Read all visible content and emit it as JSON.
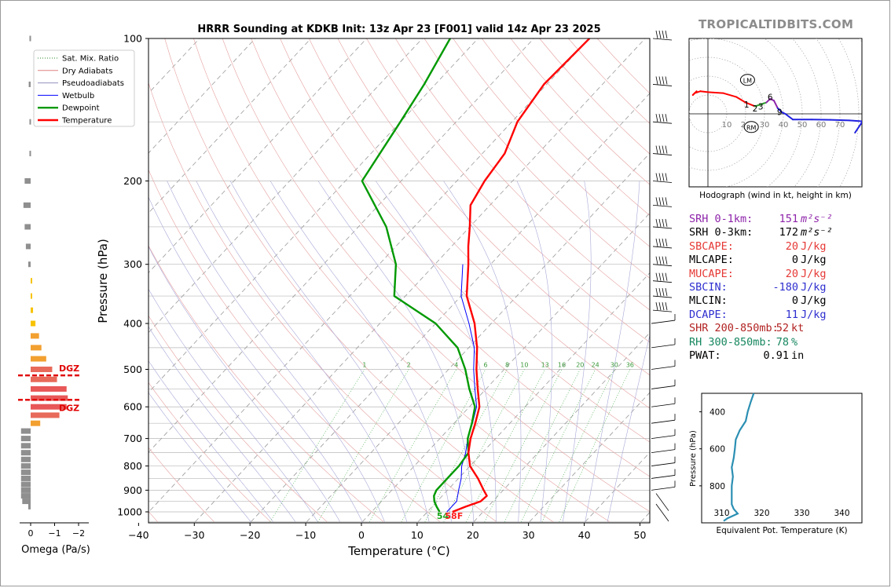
{
  "brand": "TROPICALTIDBITS.COM",
  "skewt": {
    "title": "HRRR Sounding at KDKB Init: 13z Apr 23 [F001] valid 14z Apr 23 2025",
    "xlabel": "Temperature (°C)",
    "ylabel": "Pressure (hPa)",
    "x_ticks": [
      -40,
      -30,
      -20,
      -10,
      0,
      10,
      20,
      30,
      40,
      50
    ],
    "p_ticks": [
      100,
      200,
      300,
      400,
      500,
      600,
      700,
      800,
      900,
      1000
    ],
    "xlim": [
      -40,
      50
    ],
    "plim": [
      1050,
      100
    ],
    "legend": [
      {
        "label": "Sat. Mix. Ratio",
        "color": "#2e8b2e",
        "style": "dotted"
      },
      {
        "label": "Dry Adiabats",
        "color": "#e08080",
        "style": "solid"
      },
      {
        "label": "Pseudoadiabats",
        "color": "#9090c0",
        "style": "solid"
      },
      {
        "label": "Wetbulb",
        "color": "#0000ff",
        "style": "solid"
      },
      {
        "label": "Dewpoint",
        "color": "#009900",
        "style": "solid"
      },
      {
        "label": "Temperature",
        "color": "#ff0000",
        "style": "solid"
      }
    ],
    "mixing_ratio_labels": [
      "1",
      "2",
      "4",
      "6",
      "8",
      "10",
      "13",
      "16",
      "20",
      "24",
      "30",
      "36"
    ],
    "sfc_dewpoint_label": "54",
    "sfc_temp_label": "58F",
    "dgz_label": "DGZ",
    "temperature": [
      [
        1000,
        14.5
      ],
      [
        975,
        16
      ],
      [
        950,
        17.8
      ],
      [
        925,
        18
      ],
      [
        900,
        16.5
      ],
      [
        850,
        13.5
      ],
      [
        800,
        10
      ],
      [
        750,
        7.5
      ],
      [
        700,
        5.5
      ],
      [
        650,
        3.8
      ],
      [
        600,
        1.8
      ],
      [
        550,
        -1.5
      ],
      [
        500,
        -5
      ],
      [
        450,
        -8.5
      ],
      [
        400,
        -13
      ],
      [
        350,
        -19
      ],
      [
        300,
        -24
      ],
      [
        275,
        -27
      ],
      [
        250,
        -30
      ],
      [
        225,
        -33.5
      ],
      [
        200,
        -35
      ],
      [
        175,
        -36
      ],
      [
        150,
        -39
      ],
      [
        125,
        -40.5
      ],
      [
        100,
        -40
      ]
    ],
    "dewpoint": [
      [
        1000,
        12.2
      ],
      [
        975,
        10.8
      ],
      [
        950,
        9.5
      ],
      [
        925,
        8.5
      ],
      [
        900,
        8
      ],
      [
        850,
        8
      ],
      [
        800,
        8
      ],
      [
        750,
        7.5
      ],
      [
        700,
        5
      ],
      [
        650,
        3.2
      ],
      [
        600,
        1
      ],
      [
        550,
        -3
      ],
      [
        500,
        -7
      ],
      [
        450,
        -12
      ],
      [
        400,
        -20
      ],
      [
        350,
        -32
      ],
      [
        300,
        -37
      ],
      [
        250,
        -45
      ],
      [
        200,
        -57
      ],
      [
        150,
        -60
      ],
      [
        125,
        -62
      ],
      [
        100,
        -65
      ]
    ],
    "wetbulb": [
      [
        1000,
        13.5
      ],
      [
        950,
        13.5
      ],
      [
        900,
        12
      ],
      [
        850,
        10.5
      ],
      [
        800,
        8.5
      ],
      [
        750,
        7
      ],
      [
        700,
        5
      ],
      [
        650,
        3.3
      ],
      [
        600,
        1.3
      ],
      [
        550,
        -2
      ],
      [
        500,
        -5.5
      ],
      [
        450,
        -9
      ],
      [
        400,
        -14
      ],
      [
        350,
        -20
      ],
      [
        300,
        -25
      ]
    ],
    "wind_barb_levels": [
      100,
      125,
      150,
      175,
      200,
      225,
      250,
      275,
      300,
      325,
      350,
      375,
      400,
      450,
      500,
      550,
      600,
      650,
      700,
      750,
      800,
      850,
      900,
      950,
      1000
    ]
  },
  "omega": {
    "xlabel": "Omega (Pa/s)",
    "x_ticks": [
      "0",
      "−1",
      "−2"
    ],
    "bars": [
      [
        100,
        0.05
      ],
      [
        125,
        0.08
      ],
      [
        150,
        0.05
      ],
      [
        175,
        0.05
      ],
      [
        200,
        0.25
      ],
      [
        225,
        0.3
      ],
      [
        250,
        0.25
      ],
      [
        275,
        0.2
      ],
      [
        300,
        0.1
      ],
      [
        325,
        -0.05
      ],
      [
        350,
        -0.05
      ],
      [
        375,
        -0.1
      ],
      [
        400,
        -0.2
      ],
      [
        425,
        -0.35
      ],
      [
        450,
        -0.45
      ],
      [
        475,
        -0.65
      ],
      [
        500,
        -0.9
      ],
      [
        525,
        -1.1
      ],
      [
        550,
        -1.5
      ],
      [
        575,
        -1.55
      ],
      [
        600,
        -1.5
      ],
      [
        625,
        -1.2
      ],
      [
        650,
        -0.4
      ],
      [
        675,
        0.4
      ],
      [
        700,
        0.4
      ],
      [
        725,
        0.4
      ],
      [
        750,
        0.4
      ],
      [
        775,
        0.4
      ],
      [
        800,
        0.4
      ],
      [
        825,
        0.4
      ],
      [
        850,
        0.4
      ],
      [
        875,
        0.4
      ],
      [
        900,
        0.4
      ],
      [
        925,
        0.4
      ],
      [
        950,
        0.35
      ],
      [
        975,
        0.1
      ]
    ],
    "dgz_top_hpa": 515,
    "dgz_bottom_hpa": 580
  },
  "hodograph": {
    "caption": "Hodograph (wind in kt, height in km)",
    "ring_labels": [
      "10",
      "20",
      "30",
      "40",
      "50",
      "60",
      "70"
    ],
    "height_labels": [
      {
        "t": "1",
        "u": 20.5,
        "v": 5
      },
      {
        "t": "2",
        "u": 25,
        "v": 3
      },
      {
        "t": "3",
        "u": 28,
        "v": 4
      },
      {
        "t": "6",
        "u": 33,
        "v": 9
      },
      {
        "t": "9",
        "u": 38,
        "v": 1
      }
    ],
    "lm_label": "LM",
    "rm_label": "RM",
    "lm": [
      21,
      18
    ],
    "rm": [
      23,
      -7
    ],
    "trace": [
      [
        -6,
        12
      ],
      [
        -8,
        10
      ],
      [
        -7,
        11
      ],
      [
        -4,
        12
      ],
      [
        0,
        11.5
      ],
      [
        8,
        11
      ],
      [
        15,
        9
      ],
      [
        20,
        6
      ],
      [
        25,
        4
      ],
      [
        28,
        5
      ],
      [
        31,
        6
      ],
      [
        33,
        8
      ],
      [
        35,
        7
      ],
      [
        37,
        3
      ],
      [
        39,
        1
      ],
      [
        41,
        0
      ],
      [
        45,
        -3
      ],
      [
        55,
        -3
      ],
      [
        65,
        -3.2
      ],
      [
        75,
        -3.5
      ],
      [
        82,
        -4
      ],
      [
        78,
        -10
      ]
    ]
  },
  "indices": [
    {
      "label": "SRH 0-1km:",
      "value": "151",
      "unit": "m²s⁻²",
      "color": "#8e24aa"
    },
    {
      "label": "SRH 0-3km:",
      "value": "172",
      "unit": "m²s⁻²",
      "color": "#000000"
    },
    {
      "label": "SBCAPE:",
      "value": "20",
      "unit": "J/kg",
      "color": "#e53935"
    },
    {
      "label": "MLCAPE:",
      "value": "0",
      "unit": "J/kg",
      "color": "#000000"
    },
    {
      "label": "MUCAPE:",
      "value": "20",
      "unit": "J/kg",
      "color": "#e53935"
    },
    {
      "label": "SBCIN:",
      "value": "-180",
      "unit": "J/kg",
      "color": "#2e2ecf"
    },
    {
      "label": "MLCIN:",
      "value": "0",
      "unit": "J/kg",
      "color": "#000000"
    },
    {
      "label": "DCAPE:",
      "value": "11",
      "unit": "J/kg",
      "color": "#2e2ecf"
    },
    {
      "label": "SHR 200-850mb:",
      "value": "52",
      "unit": "kt",
      "color": "#b22222"
    },
    {
      "label": "RH 300-850mb:",
      "value": "78",
      "unit": "%",
      "color": "#16875f"
    },
    {
      "label": "PWAT:",
      "value": "0.91",
      "unit": "in",
      "color": "#000000"
    }
  ],
  "theta_e": {
    "xlabel": "Equivalent Pot. Temperature (K)",
    "ylabel": "Pressure (hPa)",
    "x_ticks": [
      "310",
      "320",
      "330",
      "340"
    ],
    "y_ticks": [
      "400",
      "600",
      "800"
    ],
    "xlim": [
      305,
      345
    ],
    "plim": [
      1000,
      300
    ],
    "color": "#2b8fb3",
    "profile": [
      [
        990,
        310.5
      ],
      [
        975,
        311.5
      ],
      [
        950,
        314
      ],
      [
        925,
        313
      ],
      [
        900,
        312.5
      ],
      [
        850,
        312.5
      ],
      [
        800,
        312.5
      ],
      [
        750,
        312.8
      ],
      [
        700,
        312.5
      ],
      [
        650,
        313
      ],
      [
        600,
        313.3
      ],
      [
        550,
        313.5
      ],
      [
        500,
        314.5
      ],
      [
        450,
        316
      ],
      [
        400,
        316.5
      ],
      [
        350,
        317.2
      ],
      [
        300,
        318
      ]
    ]
  }
}
